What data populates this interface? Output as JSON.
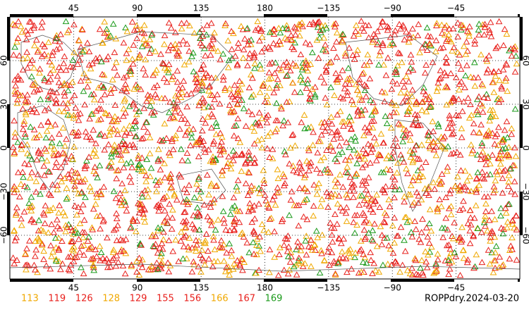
{
  "map": {
    "title": "ROPPdry.2024-03-20",
    "lon_ticks": [
      {
        "value": 45,
        "label": "45"
      },
      {
        "value": 90,
        "label": "90"
      },
      {
        "value": 135,
        "label": "135"
      },
      {
        "value": 180,
        "label": "180"
      },
      {
        "value": -135,
        "label": "−135"
      },
      {
        "value": -90,
        "label": "−90"
      },
      {
        "value": -45,
        "label": "−45"
      }
    ],
    "lat_ticks": [
      {
        "value": 60,
        "label": "60"
      },
      {
        "value": 30,
        "label": "30"
      },
      {
        "value": 0,
        "label": "0"
      },
      {
        "value": -30,
        "label": "−30"
      },
      {
        "value": -60,
        "label": "−60"
      }
    ],
    "legend": [
      {
        "name": 113,
        "color": "#f0a800"
      },
      {
        "name": 119,
        "color": "#e8201c"
      },
      {
        "name": 126,
        "color": "#e8201c"
      },
      {
        "name": 128,
        "color": "#f0a800"
      },
      {
        "name": 129,
        "color": "#e8201c"
      },
      {
        "name": 155,
        "color": "#e8201c"
      },
      {
        "name": 156,
        "color": "#e8201c"
      },
      {
        "name": 166,
        "color": "#f0a800"
      },
      {
        "name": 167,
        "color": "#e8201c"
      },
      {
        "name": 169,
        "color": "#1a9a1a"
      }
    ]
  }
}
